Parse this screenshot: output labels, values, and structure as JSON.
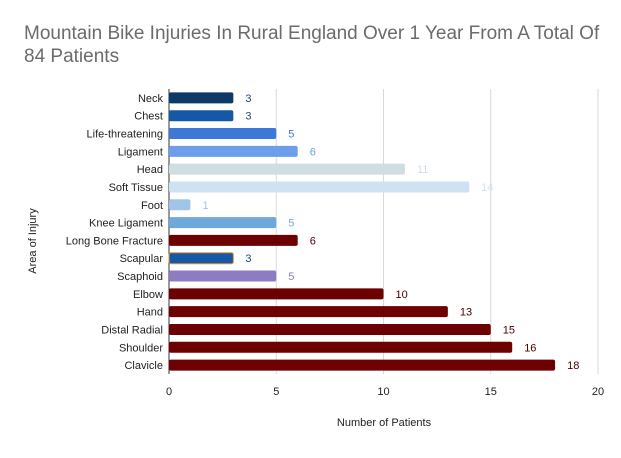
{
  "chart_data": {
    "type": "bar",
    "orientation": "horizontal",
    "title": "Mountain Bike Injuries In Rural England Over 1 Year From A Total Of 84 Patients",
    "xlabel": "Number of Patients",
    "ylabel": "Area of Injury",
    "xlim": [
      0,
      20
    ],
    "xticks": [
      "0",
      "5",
      "10",
      "15",
      "20"
    ],
    "grid": true,
    "categories": [
      "Neck",
      "Chest",
      "Life-threatening",
      "Ligament",
      "Head",
      "Soft Tissue",
      "Foot",
      "Knee Ligament",
      "Long Bone Fracture",
      "Scapular",
      "Scaphoid",
      "Elbow",
      "Hand",
      "Distal Radial",
      "Shoulder",
      "Clavicle"
    ],
    "values": [
      3,
      3,
      5,
      6,
      11,
      14,
      1,
      5,
      6,
      3,
      5,
      10,
      13,
      15,
      16,
      18
    ],
    "bar_colors": [
      "#0d3a66",
      "#1558a6",
      "#3b78d8",
      "#6d9eeb",
      "#d0dde3",
      "#cfe2f3",
      "#9fc5e8",
      "#6fa8dc",
      "#6d0000",
      "#1558a6",
      "#8e7cc3",
      "#6d0000",
      "#6d0000",
      "#6d0000",
      "#6d0000",
      "#6d0000"
    ],
    "bar_outline": [
      "",
      "",
      "",
      "",
      "",
      "",
      "",
      "",
      "",
      "#e69138",
      "",
      "",
      "",
      "",
      "",
      ""
    ],
    "label_colors": [
      "#1c4587",
      "#1c4587",
      "#3c78d8",
      "#6d9eeb",
      "#d0dde3",
      "#cfe2f3",
      "#9fc5e8",
      "#6fa8dc",
      "#4a0000",
      "#1c4587",
      "#8e7cc3",
      "#4a0000",
      "#4a0000",
      "#4a0000",
      "#4a0000",
      "#4a0000"
    ],
    "data_labels": [
      "3",
      "3",
      "5",
      "6",
      "11",
      "14",
      "1",
      "5",
      "6",
      "3",
      "5",
      "10",
      "13",
      "15",
      "16",
      "18"
    ]
  }
}
